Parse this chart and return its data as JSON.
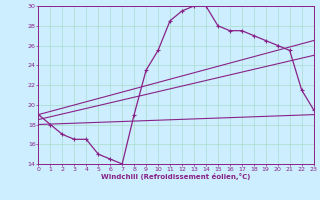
{
  "xlabel": "Windchill (Refroidissement éolien,°C)",
  "bg_color": "#cceeff",
  "grid_color": "#aaddcc",
  "line_color": "#882288",
  "xmin": 0,
  "xmax": 23,
  "ymin": 14,
  "ymax": 30,
  "yticks": [
    14,
    16,
    18,
    20,
    22,
    24,
    26,
    28,
    30
  ],
  "xticks": [
    0,
    1,
    2,
    3,
    4,
    5,
    6,
    7,
    8,
    9,
    10,
    11,
    12,
    13,
    14,
    15,
    16,
    17,
    18,
    19,
    20,
    21,
    22,
    23
  ],
  "curve1_x": [
    0,
    1,
    2,
    3,
    4,
    5,
    6,
    7,
    8,
    9,
    10,
    11,
    12,
    13,
    14,
    15,
    16,
    17,
    18,
    19,
    20,
    21,
    22,
    23
  ],
  "curve1_y": [
    19,
    18,
    17,
    16.5,
    16.5,
    15,
    14.5,
    14,
    19,
    23.5,
    25.5,
    28.5,
    29.5,
    30,
    30,
    28,
    27.5,
    27.5,
    27,
    26.5,
    26,
    25.5,
    21.5,
    19.5
  ],
  "curve2_x": [
    0,
    23
  ],
  "curve2_y": [
    18.0,
    19.0
  ],
  "curve3_x": [
    0,
    23
  ],
  "curve3_y": [
    18.5,
    25.0
  ],
  "curve4_x": [
    0,
    23
  ],
  "curve4_y": [
    19.0,
    26.5
  ]
}
